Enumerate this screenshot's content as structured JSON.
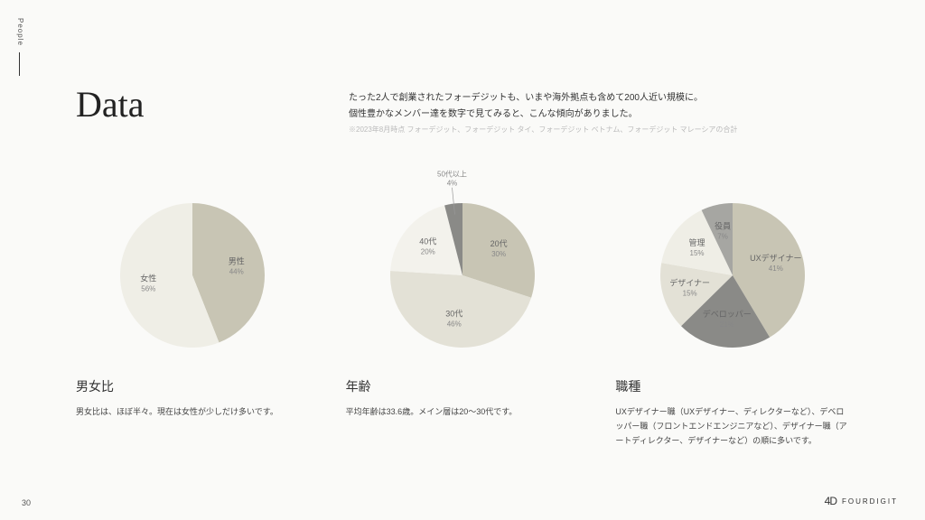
{
  "side_label": "People",
  "page_number": "30",
  "logo_text": "FOURDIGIT",
  "title": "Data",
  "intro_line1": "たった2人で創業されたフォーデジットも、いまや海外拠点も含めて200人近い規模に。",
  "intro_line2": "個性豊かなメンバー達を数字で見てみると、こんな傾向がありました。",
  "note": "※2023年8月時点 フォーデジット、フォーデジット タイ、フォーデジット ベトナム、フォーデジット マレーシアの合計",
  "charts": {
    "gender": {
      "type": "pie",
      "title": "男女比",
      "desc": "男女比は、ほぼ半々。現在は女性が少しだけ多いです。",
      "radius": 80,
      "slices": [
        {
          "label": "男性",
          "value": 44,
          "color": "#c8c5b4"
        },
        {
          "label": "女性",
          "value": 56,
          "color": "#efeee6"
        }
      ]
    },
    "age": {
      "type": "pie",
      "title": "年齢",
      "desc": "平均年齢は33.6歳。メイン層は20〜30代です。",
      "radius": 80,
      "slices": [
        {
          "label": "20代",
          "value": 30,
          "color": "#c8c5b4"
        },
        {
          "label": "30代",
          "value": 46,
          "color": "#e3e1d6"
        },
        {
          "label": "40代",
          "value": 20,
          "color": "#f3f2ec"
        },
        {
          "label": "50代以上",
          "value": 4,
          "color": "#8a8a87",
          "callout": true
        }
      ]
    },
    "job": {
      "type": "pie",
      "title": "職種",
      "desc": "UXデザイナー職（UXデザイナー、ディレクターなど）、デベロッパー職（フロントエンドエンジニアなど）、デザイナー職（アートディレクター、デザイナーなど）の順に多いです。",
      "radius": 80,
      "slices": [
        {
          "label": "UXデザイナー",
          "value": 41,
          "color": "#c8c5b4"
        },
        {
          "label": "デベロッパー",
          "value": 21,
          "color": "#8a8a87"
        },
        {
          "label": "デザイナー",
          "value": 15,
          "color": "#e3e1d6"
        },
        {
          "label": "管理",
          "value": 15,
          "color": "#efeee6"
        },
        {
          "label": "役員",
          "value": 7,
          "color": "#a6a6a2"
        }
      ]
    }
  },
  "background_color": "#fafaf8",
  "label_color": "#666666",
  "pct_color": "#888888"
}
